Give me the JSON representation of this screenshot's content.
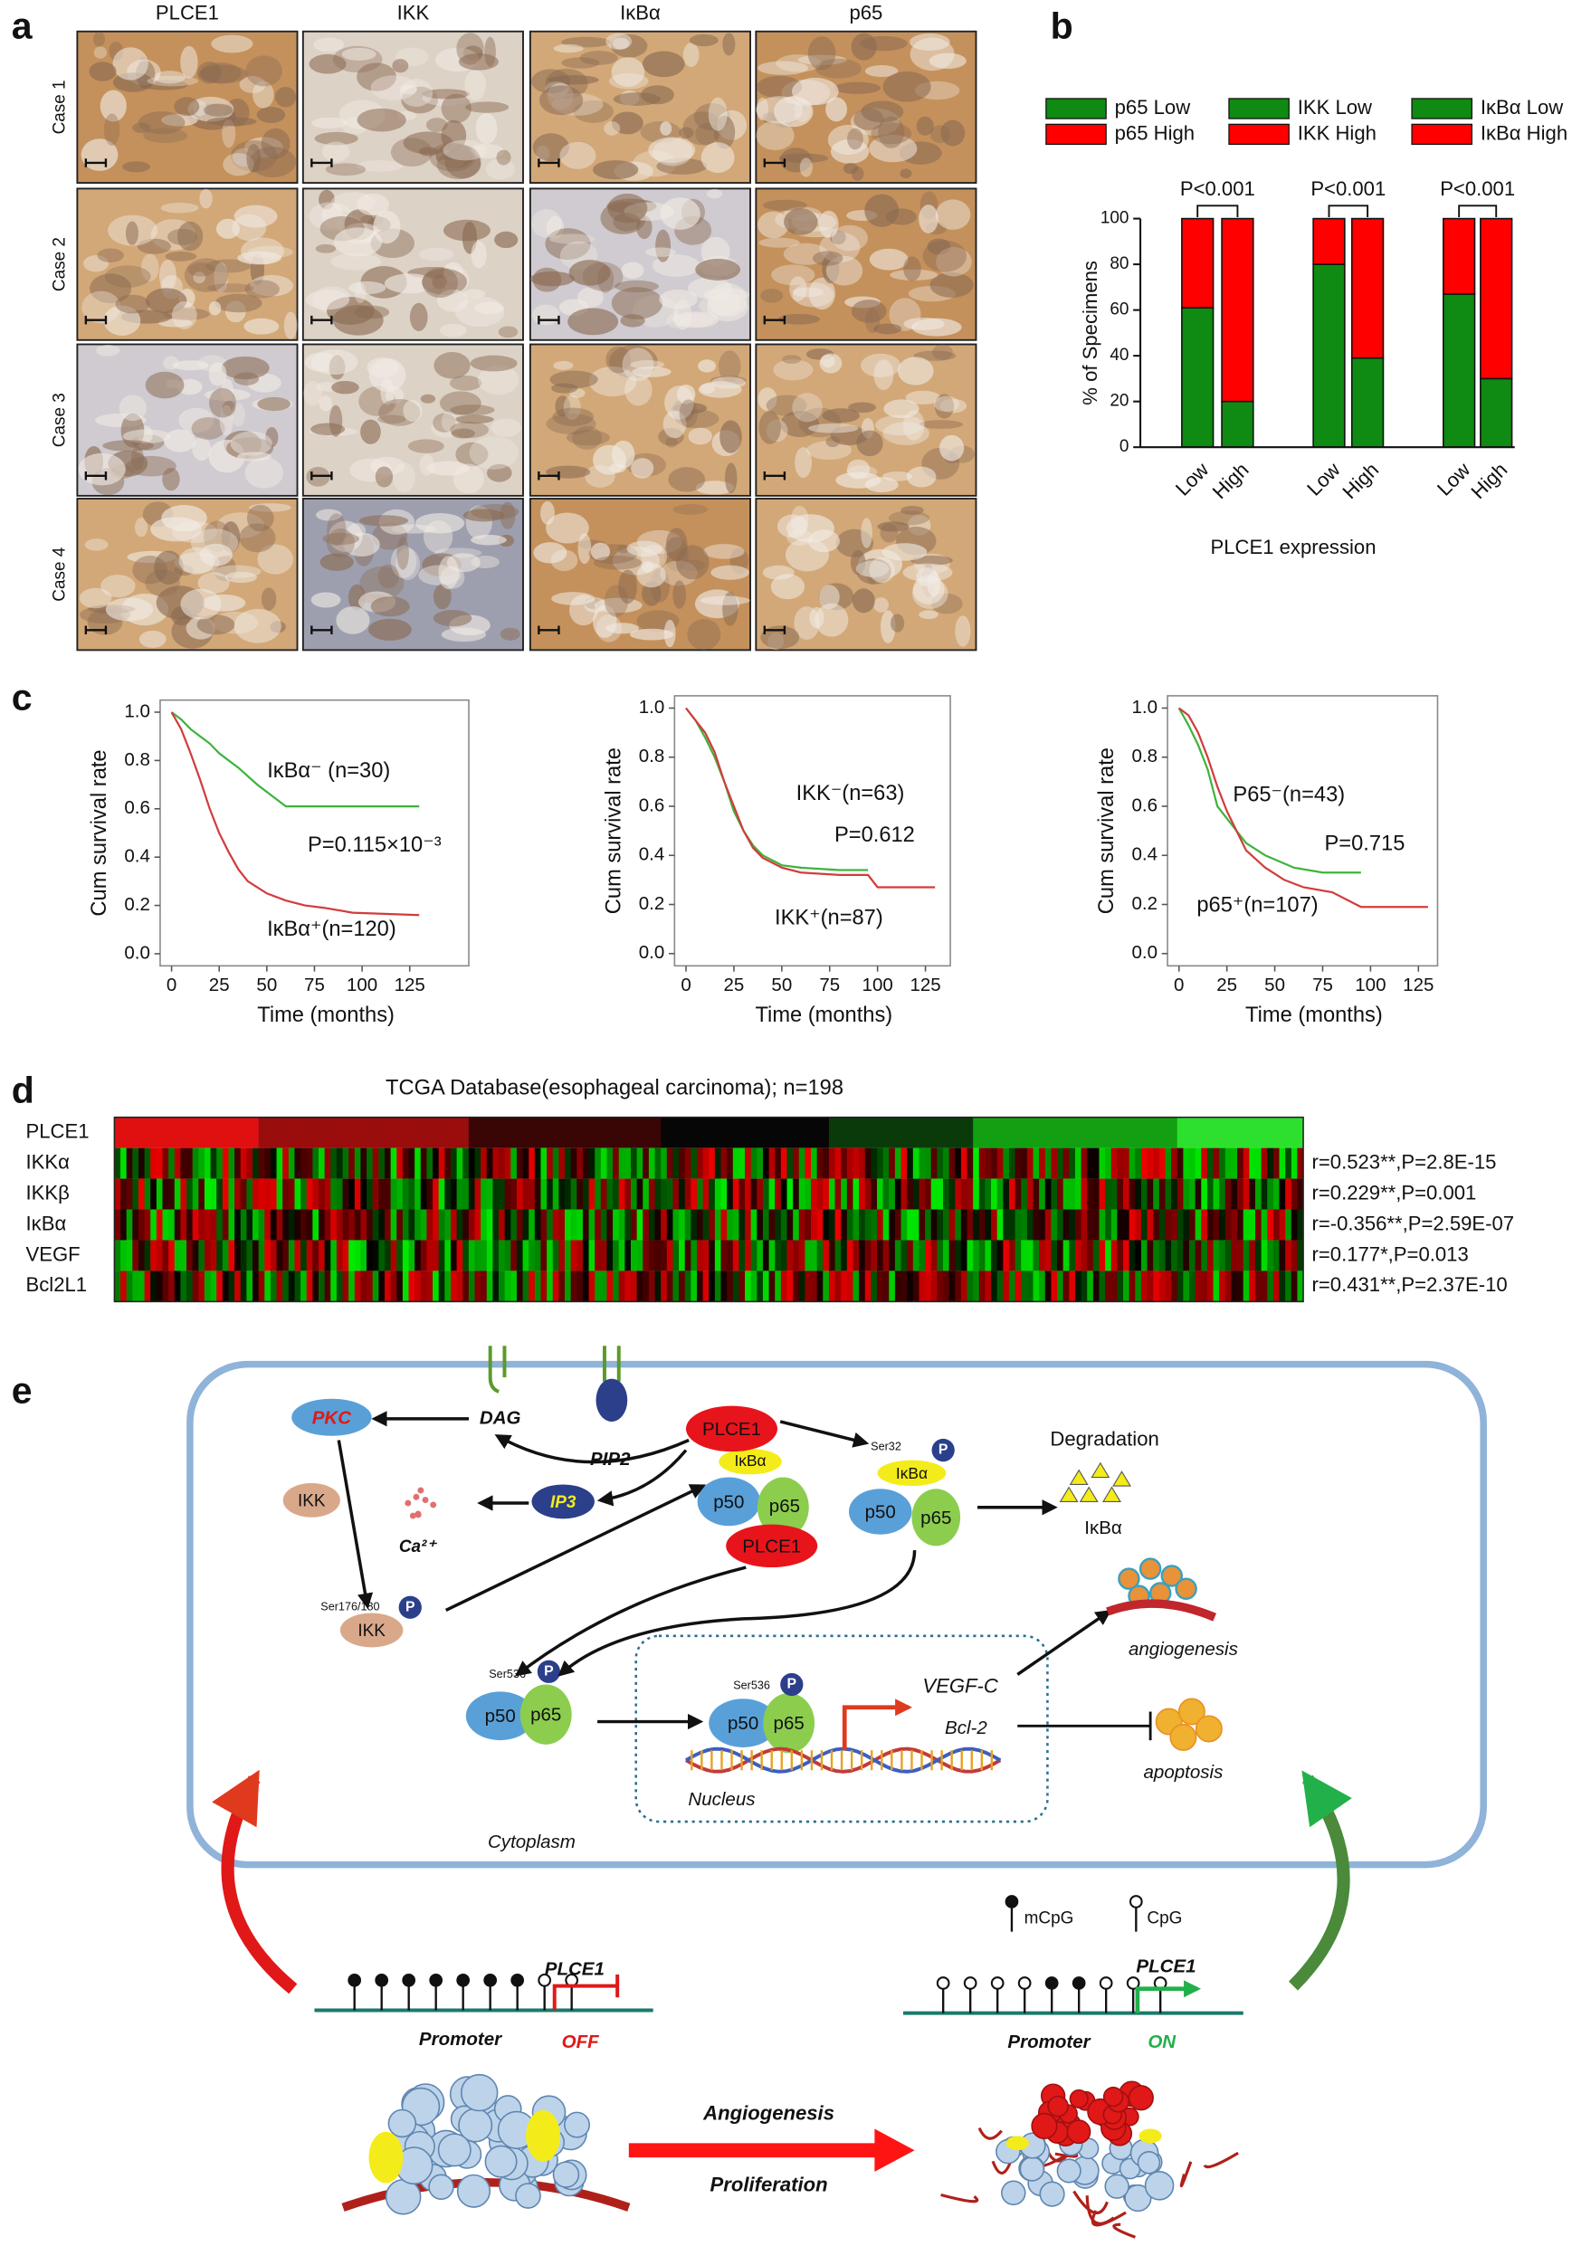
{
  "panel_labels": [
    "a",
    "b",
    "c",
    "d",
    "e"
  ],
  "panel_a": {
    "columns": [
      "PLCE1",
      "IKK",
      "IκBα",
      "p65"
    ],
    "rows": [
      "Case 1",
      "Case 2",
      "Case 3",
      "Case 4"
    ]
  },
  "chart_data": [
    {
      "type": "bar",
      "stacked": true,
      "categories": [
        "Low",
        "High",
        "Low",
        "High",
        "Low",
        "High"
      ],
      "series": [
        {
          "name": "p65 Low",
          "color": "#0f8a12",
          "values": [
            61,
            20,
            null,
            null,
            null,
            null
          ]
        },
        {
          "name": "p65 High",
          "color": "#ff0000",
          "values": [
            39,
            80,
            null,
            null,
            null,
            null
          ]
        },
        {
          "name": "IKK Low",
          "color": "#0f8a12",
          "values": [
            null,
            null,
            80,
            39,
            null,
            null
          ]
        },
        {
          "name": "IKK High",
          "color": "#ff0000",
          "values": [
            null,
            null,
            20,
            61,
            null,
            null
          ]
        },
        {
          "name": "IκBα Low",
          "color": "#0f8a12",
          "values": [
            null,
            null,
            null,
            null,
            67,
            30
          ]
        },
        {
          "name": "IκBα High",
          "color": "#ff0000",
          "values": [
            null,
            null,
            null,
            null,
            33,
            70
          ]
        }
      ],
      "ylim": [
        0,
        100
      ],
      "yticks": [
        0,
        20,
        40,
        60,
        80,
        100
      ],
      "y_label": "% of Specimens",
      "x_label": "PLCE1 expression",
      "annotations": [
        "P<0.001",
        "P<0.001",
        "P<0.001"
      ]
    },
    {
      "type": "line",
      "xlim": [
        -6,
        156
      ],
      "ylim": [
        -0.05,
        1.05
      ],
      "xticks": [
        0,
        25,
        50,
        75,
        100,
        125
      ],
      "yticks": [
        {
          "value": 0,
          "label": "0.0"
        },
        0.2,
        0.4,
        0.6,
        0.8,
        {
          "value": 1,
          "label": "1.0"
        }
      ],
      "y_label": "Cum survival rate",
      "x_label": "Time (months)",
      "series": [
        {
          "color": "#3cb43c",
          "x": [
            0,
            5,
            10,
            15,
            20,
            25,
            30,
            35,
            45,
            60,
            70,
            90,
            130
          ],
          "values": [
            1,
            0.97,
            0.93,
            0.9,
            0.87,
            0.83,
            0.8,
            0.77,
            0.7,
            0.61,
            0.61,
            0.61,
            0.61
          ]
        },
        {
          "color": "#d23c3c",
          "x": [
            0,
            5,
            10,
            15,
            20,
            25,
            30,
            35,
            40,
            50,
            60,
            70,
            80,
            95,
            130
          ],
          "values": [
            1,
            0.93,
            0.83,
            0.72,
            0.6,
            0.5,
            0.42,
            0.35,
            0.3,
            0.25,
            0.22,
            0.2,
            0.19,
            0.17,
            0.16
          ]
        }
      ],
      "annotations": [
        "IκBα⁻ (n=30)",
        "P=0.115×10⁻³",
        "IκBα⁺(n=120)"
      ]
    },
    {
      "type": "line",
      "xlim": [
        -6,
        138
      ],
      "ylim": [
        -0.05,
        1.05
      ],
      "xticks": [
        0,
        25,
        50,
        75,
        100,
        125
      ],
      "yticks": [
        {
          "value": 0,
          "label": "0.0"
        },
        0.2,
        0.4,
        0.6,
        0.8,
        {
          "value": 1,
          "label": "1.0"
        }
      ],
      "y_label": "Cum survival rate",
      "x_label": "Time (months)",
      "series": [
        {
          "color": "#3cb43c",
          "x": [
            0,
            5,
            10,
            15,
            20,
            25,
            30,
            35,
            40,
            50,
            60,
            80,
            95
          ],
          "values": [
            1,
            0.95,
            0.88,
            0.8,
            0.7,
            0.58,
            0.5,
            0.44,
            0.4,
            0.36,
            0.35,
            0.34,
            0.34
          ]
        },
        {
          "color": "#d23c3c",
          "x": [
            0,
            5,
            10,
            15,
            20,
            25,
            30,
            35,
            40,
            50,
            60,
            80,
            95,
            100,
            130
          ],
          "values": [
            1,
            0.95,
            0.9,
            0.82,
            0.7,
            0.6,
            0.5,
            0.43,
            0.39,
            0.35,
            0.33,
            0.32,
            0.32,
            0.27,
            0.27
          ]
        }
      ],
      "annotations": [
        "IKK⁻(n=63)",
        "P=0.612",
        "IKK⁺(n=87)"
      ]
    },
    {
      "type": "line",
      "xlim": [
        -6,
        135
      ],
      "ylim": [
        -0.05,
        1.05
      ],
      "xticks": [
        0,
        25,
        50,
        75,
        100,
        125
      ],
      "yticks": [
        {
          "value": 0,
          "label": "0.0"
        },
        0.2,
        0.4,
        0.6,
        0.8,
        {
          "value": 1,
          "label": "1.0"
        }
      ],
      "y_label": "Cum survival rate",
      "x_label": "Time (months)",
      "series": [
        {
          "color": "#3cb43c",
          "x": [
            0,
            5,
            10,
            15,
            20,
            25,
            30,
            35,
            45,
            60,
            75,
            95
          ],
          "values": [
            1,
            0.93,
            0.85,
            0.75,
            0.6,
            0.55,
            0.5,
            0.45,
            0.4,
            0.35,
            0.33,
            0.33
          ]
        },
        {
          "color": "#d23c3c",
          "x": [
            0,
            5,
            10,
            15,
            20,
            25,
            30,
            35,
            45,
            55,
            65,
            80,
            95,
            130
          ],
          "values": [
            1,
            0.97,
            0.9,
            0.8,
            0.68,
            0.58,
            0.5,
            0.42,
            0.35,
            0.3,
            0.27,
            0.25,
            0.19,
            0.19
          ]
        }
      ],
      "annotations": [
        "P65⁻(n=43)",
        "P=0.715",
        "p65⁺(n=107)"
      ]
    }
  ],
  "panel_d": {
    "title": "TCGA Database(esophageal carcinoma); n=198",
    "rows": [
      "PLCE1",
      "IKKα",
      "IKKβ",
      "IκBα",
      "VEGF",
      "Bcl2L1"
    ],
    "correlations": [
      "r=0.523**,P=2.8E-15",
      "r=0.229**,P=0.001",
      "r=-0.356**,P=2.59E-07",
      "r=0.177*,P=0.013",
      "r=0.431**,P=2.37E-10"
    ]
  },
  "panel_e": {
    "labels": [
      "PKC",
      "DAG",
      "PIP2",
      "PLCE1",
      "IκBα",
      "p50",
      "p65",
      "PLCE1",
      "Ser32",
      "P",
      "IκBα",
      "p50",
      "p65",
      "Degradation",
      "IκBα",
      "IKK",
      "Ca²⁺",
      "IP3",
      "Ser176/180",
      "P",
      "IKK",
      "Ser536",
      "P",
      "p50",
      "p65",
      "Ser536",
      "P",
      "p50",
      "p65",
      "VEGF-C",
      "Bcl-2",
      "Nucleus",
      "angiogenesis",
      "apoptosis",
      "Cytoplasm",
      "mCpG",
      "CpG",
      "PLCE1",
      "OFF",
      "PLCE1",
      "ON",
      "Promoter",
      "Promoter",
      "Angiogenesis",
      "Proliferation"
    ]
  }
}
